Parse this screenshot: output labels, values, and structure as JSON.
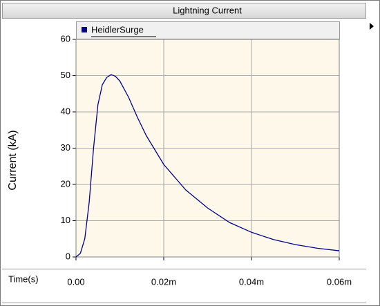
{
  "chart_data": {
    "type": "line",
    "title": "Lightning Current",
    "xlabel": "Time(s)",
    "ylabel": "Current (kA)",
    "x": [
      0,
      1e-06,
      2e-06,
      3e-06,
      4e-06,
      5e-06,
      6e-06,
      7e-06,
      8e-06,
      9e-06,
      1e-05,
      1.2e-05,
      1.4e-05,
      1.6e-05,
      1.8e-05,
      2e-05,
      2.5e-05,
      3e-05,
      3.5e-05,
      4e-05,
      4.5e-05,
      5e-05,
      5.5e-05,
      6e-05
    ],
    "series": [
      {
        "name": "HeidlerSurge",
        "color": "#00008b",
        "values": [
          0,
          1,
          5,
          15,
          30,
          42,
          47.5,
          49.5,
          50.3,
          49.8,
          48.5,
          44,
          38.5,
          33.5,
          29.5,
          25.5,
          18.5,
          13.5,
          9.5,
          6.8,
          4.8,
          3.4,
          2.4,
          1.7
        ]
      }
    ],
    "xlim": [
      0,
      6e-05
    ],
    "xticks": [
      {
        "value": 0,
        "label": "0.00"
      },
      {
        "value": 2e-05,
        "label": "0.02m"
      },
      {
        "value": 4e-05,
        "label": "0.04m"
      },
      {
        "value": 6e-05,
        "label": "0.06m"
      }
    ],
    "ylim": [
      0,
      60
    ],
    "yticks": [
      0,
      10,
      20,
      30,
      40,
      50,
      60
    ],
    "grid": true,
    "legend": "top"
  }
}
